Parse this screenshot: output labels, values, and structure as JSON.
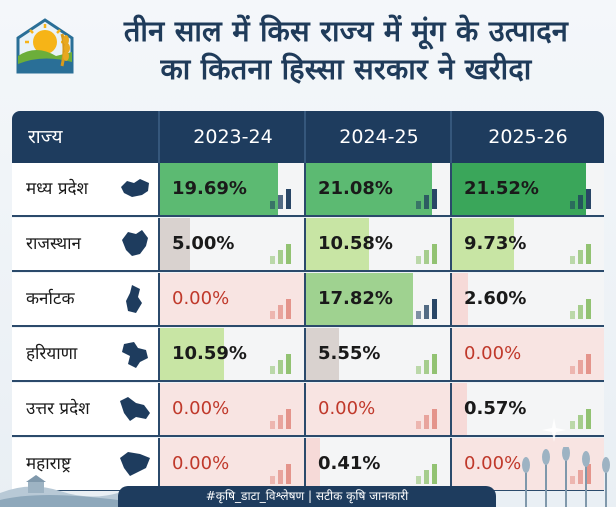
{
  "title": {
    "line1": "तीन साल में किस राज्य में मूंग के उत्पादन",
    "line2": "का कितना हिस्सा सरकार ने खरीदा"
  },
  "table": {
    "headers": [
      "राज्य",
      "2023-24",
      "2024-25",
      "2025-26"
    ],
    "rows": [
      {
        "state": "मध्य प्रदेश",
        "values": [
          "19.69%",
          "21.08%",
          "21.52%"
        ],
        "shares": [
          19.69,
          21.08,
          21.52
        ]
      },
      {
        "state": "राजस्थान",
        "values": [
          "5.00%",
          "10.58%",
          "9.73%"
        ],
        "shares": [
          5.0,
          10.58,
          9.73
        ]
      },
      {
        "state": "कर्नाटक",
        "values": [
          "0.00%",
          "17.82%",
          "2.60%"
        ],
        "shares": [
          0.0,
          17.82,
          2.6
        ]
      },
      {
        "state": "हरियाणा",
        "values": [
          "10.59%",
          "5.55%",
          "0.00%"
        ],
        "shares": [
          10.59,
          5.55,
          0.0
        ]
      },
      {
        "state": "उत्तर प्रदेश",
        "values": [
          "0.00%",
          "0.00%",
          "0.57%"
        ],
        "shares": [
          0.0,
          0.0,
          0.57
        ]
      },
      {
        "state": "महाराष्ट्र",
        "values": [
          "0.00%",
          "0.41%",
          "0.00%"
        ],
        "shares": [
          0.0,
          0.41,
          0.0
        ]
      }
    ]
  },
  "footer": {
    "text": "#कृषि_डाटा_विश्लेषण | सटीक कृषि जानकारी"
  },
  "colors": {
    "header_bg": "#1e3c5e",
    "title": "#1f3b5a",
    "zero_text": "#c0392b"
  },
  "icons": {
    "logo": "sun-field-wheat-logo",
    "state_maps": [
      "madhya-pradesh-map-icon",
      "rajasthan-map-icon",
      "karnataka-map-icon",
      "haryana-map-icon",
      "uttar-pradesh-map-icon",
      "maharashtra-map-icon"
    ]
  }
}
